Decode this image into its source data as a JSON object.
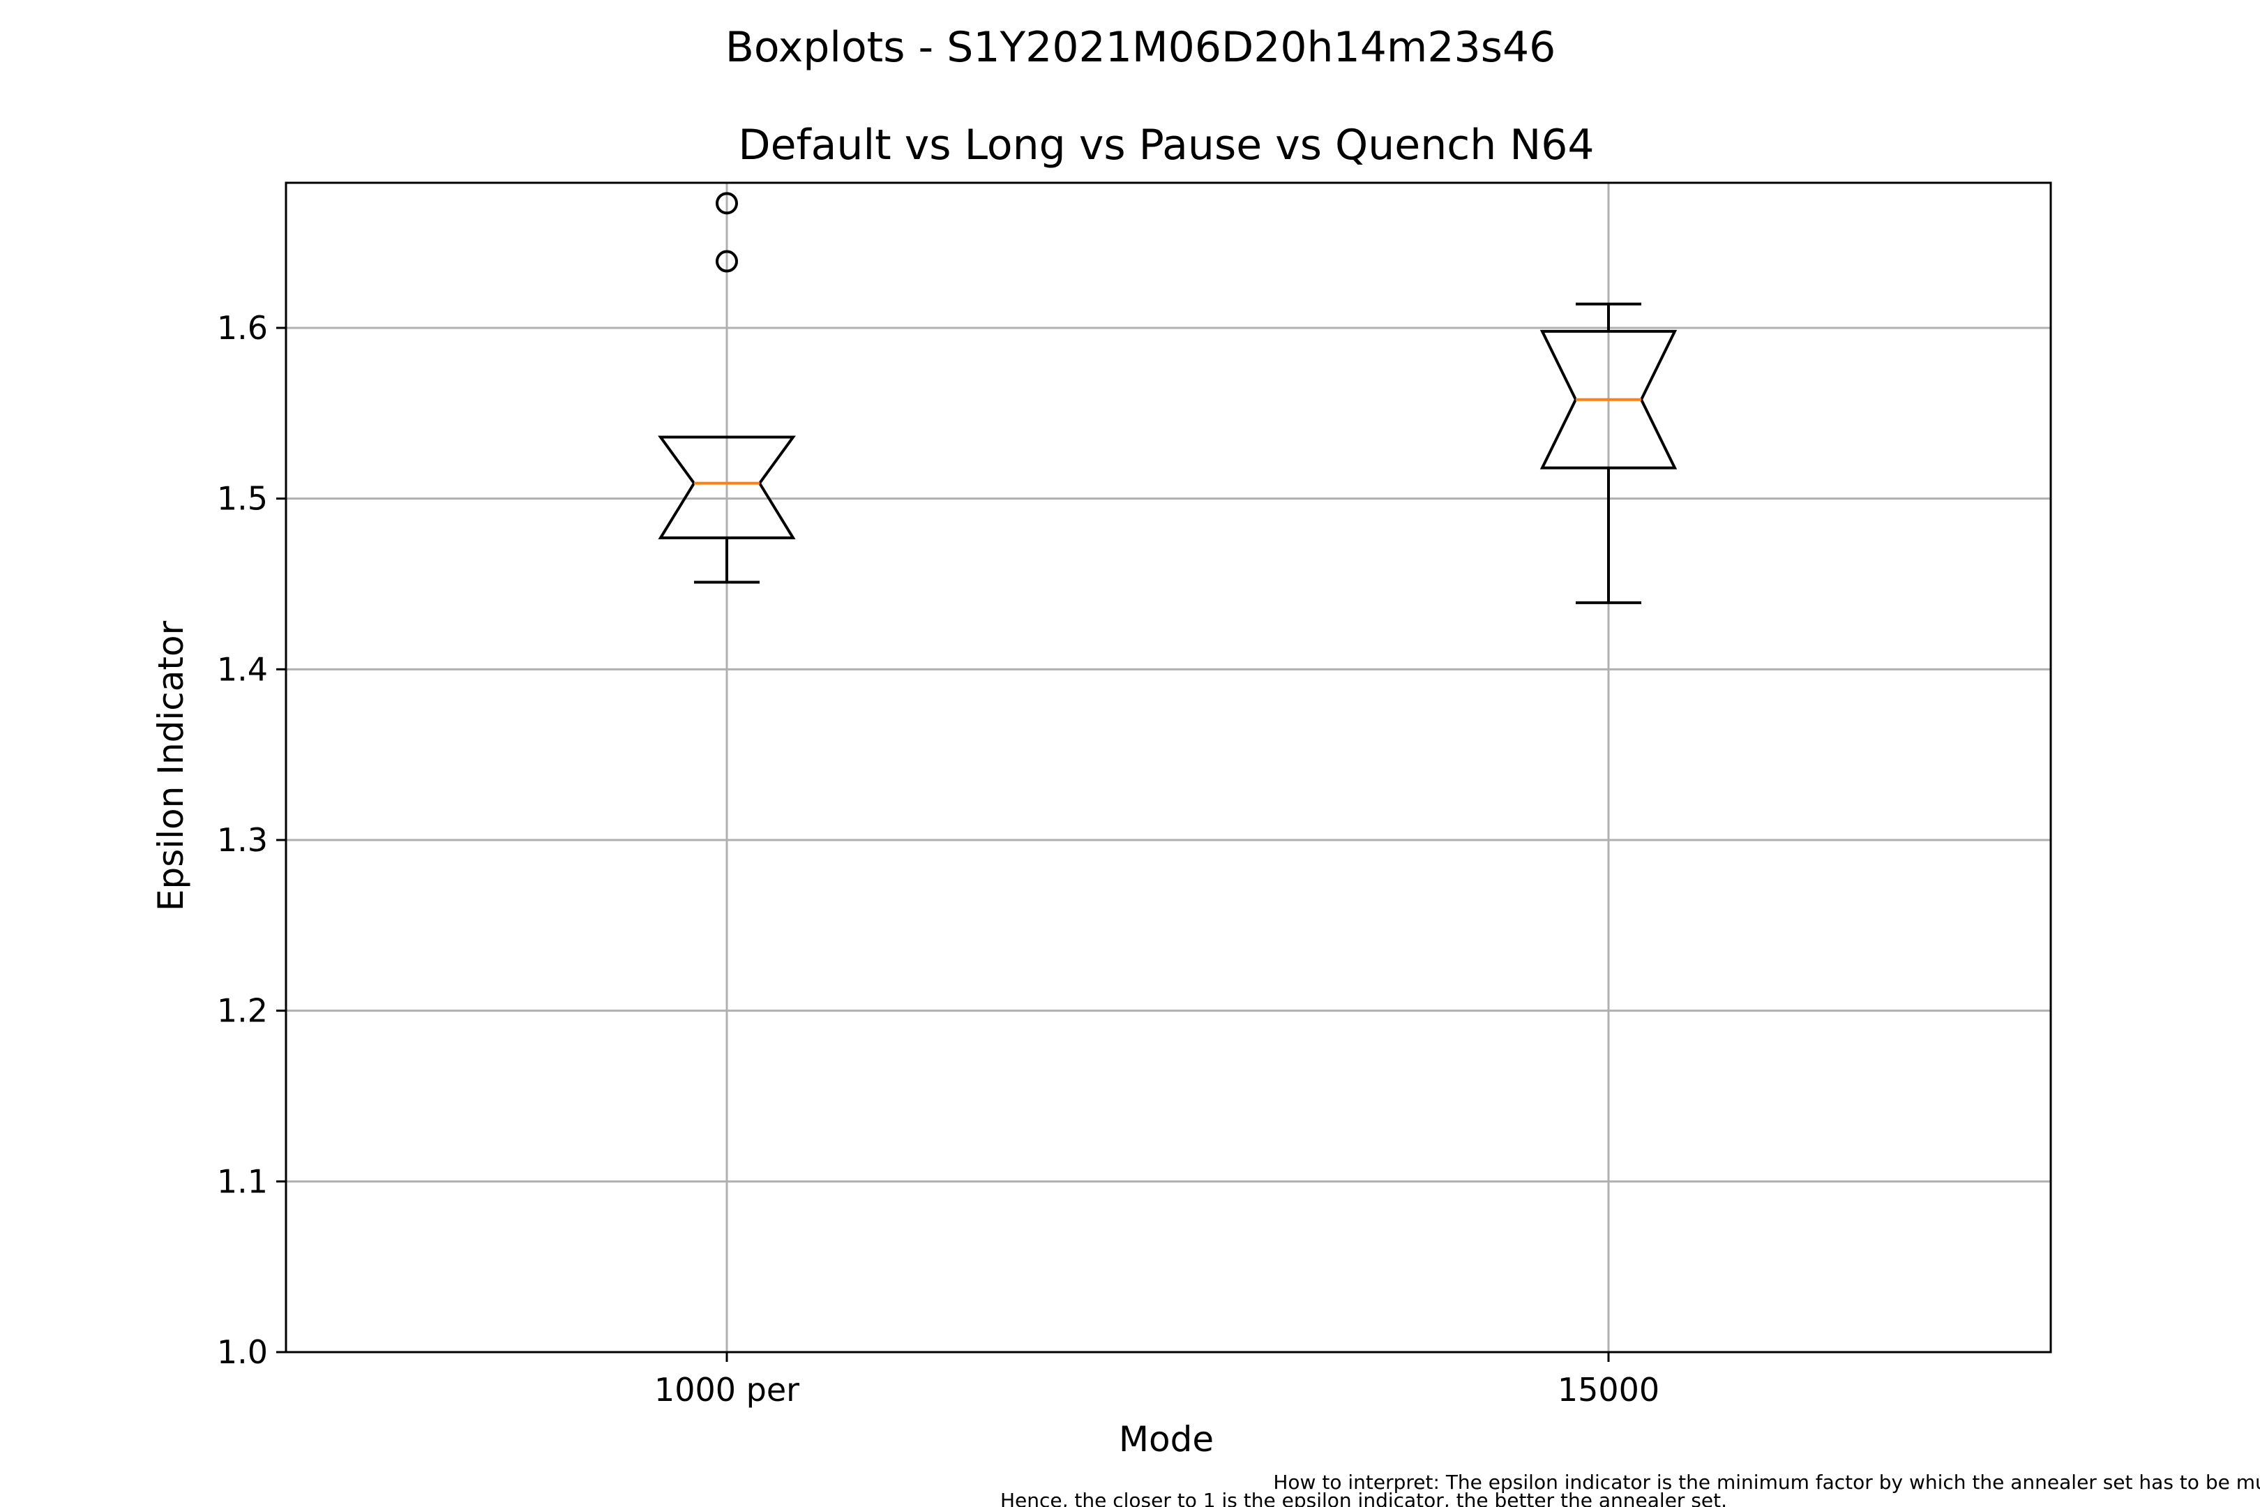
{
  "chart_data": {
    "type": "boxplot",
    "suptitle": "Boxplots - S1Y2021M06D20h14m23s46",
    "title": "Default vs Long vs Pause vs Quench N64",
    "xlabel": "Mode",
    "ylabel": "Epsilon Indicator",
    "ylim": [
      1.0,
      1.685
    ],
    "yticks": [
      1.0,
      1.1,
      1.2,
      1.3,
      1.4,
      1.5,
      1.6
    ],
    "ytick_labels": [
      "1.0",
      "1.1",
      "1.2",
      "1.3",
      "1.4",
      "1.5",
      "1.6"
    ],
    "grid": true,
    "notched": true,
    "categories": [
      "1000 per",
      "15000"
    ],
    "boxes": [
      {
        "category": "1000 per",
        "whisker_low": 1.451,
        "q1": 1.477,
        "median": 1.509,
        "q3": 1.536,
        "whisker_high": 1.536,
        "notch_low": 1.477,
        "notch_high": 1.536,
        "outliers": [
          1.639,
          1.673
        ]
      },
      {
        "category": "15000",
        "whisker_low": 1.439,
        "q1": 1.518,
        "median": 1.558,
        "q3": 1.598,
        "whisker_high": 1.614,
        "notch_low": 1.518,
        "notch_high": 1.598,
        "outliers": []
      }
    ],
    "colors": {
      "box": "#000000",
      "median": "#ff7f0e",
      "grid": "#b0b0b0"
    }
  },
  "footnote": {
    "line1": "How to interpret: The epsilon indicator is the minimum factor by which the annealer set has to be multiplied in the objective so as to weakly dominate the classical set.",
    "line2": "Hence, the closer to 1 is the epsilon indicator, the better the annealer set."
  }
}
